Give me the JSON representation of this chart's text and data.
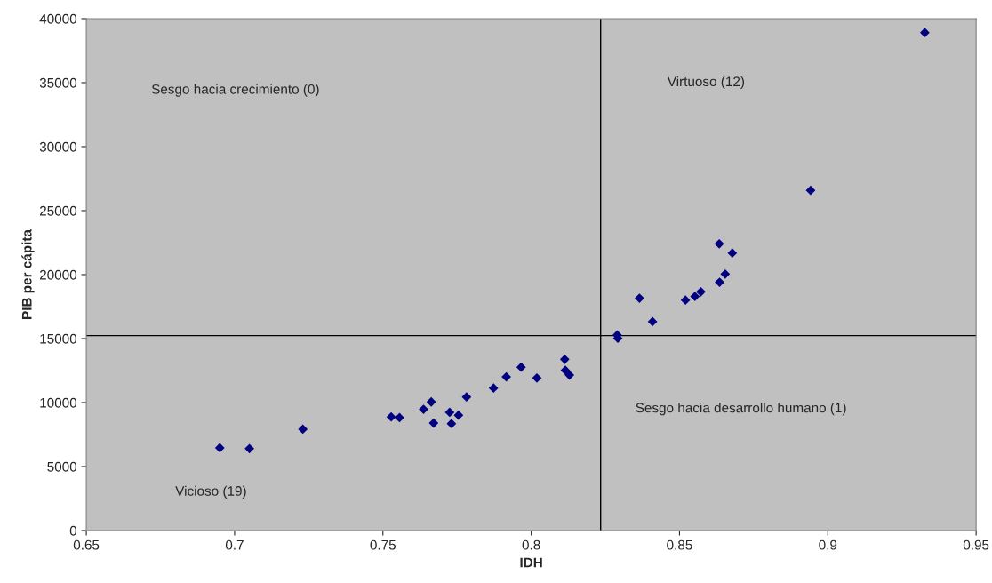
{
  "chart_data": {
    "type": "scatter",
    "xlabel": "IDH",
    "ylabel": "PIB per cápita",
    "x": [
      0.695,
      0.705,
      0.723,
      0.7528,
      0.7556,
      0.7637,
      0.7663,
      0.7671,
      0.7725,
      0.7731,
      0.7755,
      0.7782,
      0.7873,
      0.7916,
      0.7966,
      0.8019,
      0.8113,
      0.8115,
      0.8129,
      0.829,
      0.8292,
      0.8365,
      0.8409,
      0.852,
      0.8552,
      0.8572,
      0.8635,
      0.8654,
      0.8634,
      0.8678,
      0.8942,
      0.9327
    ],
    "values": [
      6460,
      6400,
      7920,
      8870,
      8820,
      9470,
      10050,
      8400,
      9240,
      8350,
      9010,
      10440,
      11130,
      12010,
      12760,
      11920,
      13380,
      12520,
      12150,
      15280,
      15020,
      18150,
      16320,
      18010,
      18290,
      18660,
      19400,
      20050,
      22410,
      21690,
      26580,
      38910
    ],
    "color": "#000080",
    "marker": "diamond",
    "grid": false,
    "xlim": [
      0.65,
      0.95
    ],
    "xticks": [
      {
        "value": 0.65,
        "label": "0.65"
      },
      {
        "value": 0.7,
        "label": "0.7"
      },
      {
        "value": 0.75,
        "label": "0.75"
      },
      {
        "value": 0.8,
        "label": "0.8"
      },
      {
        "value": 0.85,
        "label": "0.85"
      },
      {
        "value": 0.9,
        "label": "0.9"
      },
      {
        "value": 0.95,
        "label": "0.95"
      }
    ],
    "ylim": [
      0,
      40000
    ],
    "yticks": [
      0,
      5000,
      10000,
      15000,
      20000,
      25000,
      30000,
      35000,
      40000
    ],
    "ref_lines": [
      {
        "axis": "x",
        "value": 0.8234,
        "color": "#000000"
      },
      {
        "axis": "y",
        "value": 15230,
        "color": "#000000"
      }
    ],
    "annotations": [
      "Sesgo hacia crecimiento (0)",
      "Virtuoso (12)",
      "Sesgo hacia desarrollo humano (1)",
      "Vicioso (19)"
    ]
  }
}
